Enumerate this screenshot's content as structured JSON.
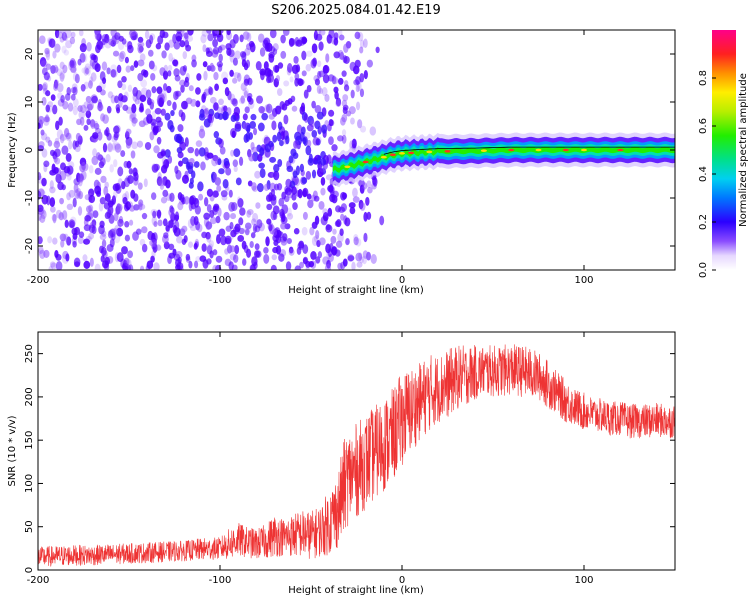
{
  "title": "S206.2025.084.01.42.E19",
  "chart_data": [
    {
      "type": "heatmap",
      "name": "spectrogram",
      "xlabel": "Height of straight line (km)",
      "ylabel": "Frequency (Hz)",
      "xlim": [
        -200,
        150
      ],
      "ylim": [
        -25,
        25
      ],
      "xticks": [
        -200,
        -100,
        0,
        100
      ],
      "xtick_labels": [
        "-200",
        "-100",
        "0",
        "100"
      ],
      "yticks": [
        -20,
        -10,
        0,
        10,
        20
      ],
      "ytick_labels": [
        "-20",
        "-10",
        "0",
        "10",
        "20"
      ],
      "colorbar": {
        "label": "Normalized spectral amplitude",
        "range": [
          0,
          1
        ],
        "ticks": [
          0,
          0.2,
          0.4,
          0.6,
          0.8
        ],
        "tick_labels": [
          "0.0",
          "0.2",
          "0.4",
          "0.6",
          "0.8"
        ]
      },
      "ridge": {
        "x": [
          -35,
          -30,
          -25,
          -20,
          -15,
          -10,
          -5,
          0,
          10,
          20,
          40,
          60,
          100,
          150
        ],
        "y": [
          -4,
          -3.5,
          -3,
          -2.5,
          -2,
          -1.5,
          -1,
          -0.7,
          -0.5,
          -0.3,
          -0.2,
          0,
          0,
          0
        ]
      }
    },
    {
      "type": "line",
      "name": "snr",
      "xlabel": "Height of straight line (km)",
      "ylabel": "SNR (10 * v/v)",
      "xlim": [
        -200,
        150
      ],
      "ylim": [
        0,
        275
      ],
      "xticks": [
        -200,
        -100,
        0,
        100
      ],
      "xtick_labels": [
        "-200",
        "-100",
        "0",
        "100"
      ],
      "yticks": [
        0,
        50,
        100,
        150,
        200,
        250
      ],
      "ytick_labels": [
        "0",
        "50",
        "100",
        "150",
        "200",
        "250"
      ],
      "color": "#ee3333",
      "series": [
        {
          "name": "SNR",
          "x": [
            -200,
            -190,
            -180,
            -170,
            -160,
            -150,
            -140,
            -130,
            -120,
            -110,
            -100,
            -95,
            -90,
            -85,
            -80,
            -75,
            -70,
            -65,
            -60,
            -55,
            -50,
            -45,
            -40,
            -35,
            -32,
            -30,
            -28,
            -25,
            -20,
            -15,
            -10,
            -5,
            0,
            5,
            10,
            15,
            20,
            25,
            30,
            35,
            40,
            45,
            50,
            55,
            60,
            65,
            70,
            75,
            80,
            85,
            90,
            95,
            100,
            105,
            110,
            115,
            120,
            125,
            130,
            135,
            140,
            145,
            150
          ],
          "y": [
            15,
            16,
            17,
            17,
            18,
            19,
            20,
            21,
            22,
            24,
            25,
            30,
            35,
            32,
            30,
            33,
            40,
            38,
            40,
            42,
            40,
            45,
            55,
            70,
            95,
            105,
            110,
            115,
            125,
            135,
            145,
            155,
            175,
            185,
            195,
            205,
            210,
            215,
            222,
            225,
            228,
            230,
            230,
            230,
            232,
            230,
            228,
            224,
            215,
            205,
            195,
            188,
            183,
            180,
            178,
            175,
            175,
            172,
            172,
            172,
            173,
            172,
            172
          ],
          "noise": [
            12,
            12,
            12,
            12,
            12,
            12,
            12,
            12,
            12,
            13,
            13,
            18,
            20,
            18,
            18,
            20,
            25,
            22,
            25,
            28,
            28,
            30,
            38,
            45,
            55,
            55,
            55,
            55,
            55,
            55,
            55,
            55,
            55,
            50,
            45,
            45,
            40,
            40,
            38,
            35,
            32,
            30,
            30,
            30,
            30,
            30,
            30,
            28,
            28,
            25,
            25,
            22,
            22,
            20,
            20,
            20,
            20,
            20,
            20,
            20,
            20,
            20,
            20
          ]
        }
      ]
    }
  ]
}
